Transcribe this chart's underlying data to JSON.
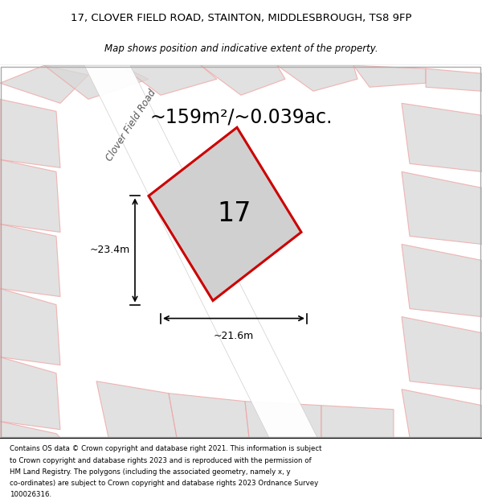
{
  "title_line1": "17, CLOVER FIELD ROAD, STAINTON, MIDDLESBROUGH, TS8 9FP",
  "title_line2": "Map shows position and indicative extent of the property.",
  "area_text": "~159m²/~0.039ac.",
  "plot_number": "17",
  "dim_width": "~21.6m",
  "dim_height": "~23.4m",
  "road_label": "Clover Field Road",
  "footer_lines": [
    "Contains OS data © Crown copyright and database right 2021. This information is subject",
    "to Crown copyright and database rights 2023 and is reproduced with the permission of",
    "HM Land Registry. The polygons (including the associated geometry, namely x, y",
    "co-ordinates) are subject to Crown copyright and database rights 2023 Ordnance Survey",
    "100026316."
  ],
  "map_bg": "#e8e8e8",
  "plot_edge_color": "#cc0000",
  "other_plot_edge": "#f0a0a0",
  "bg_poly_fill": "#d8d8d8"
}
